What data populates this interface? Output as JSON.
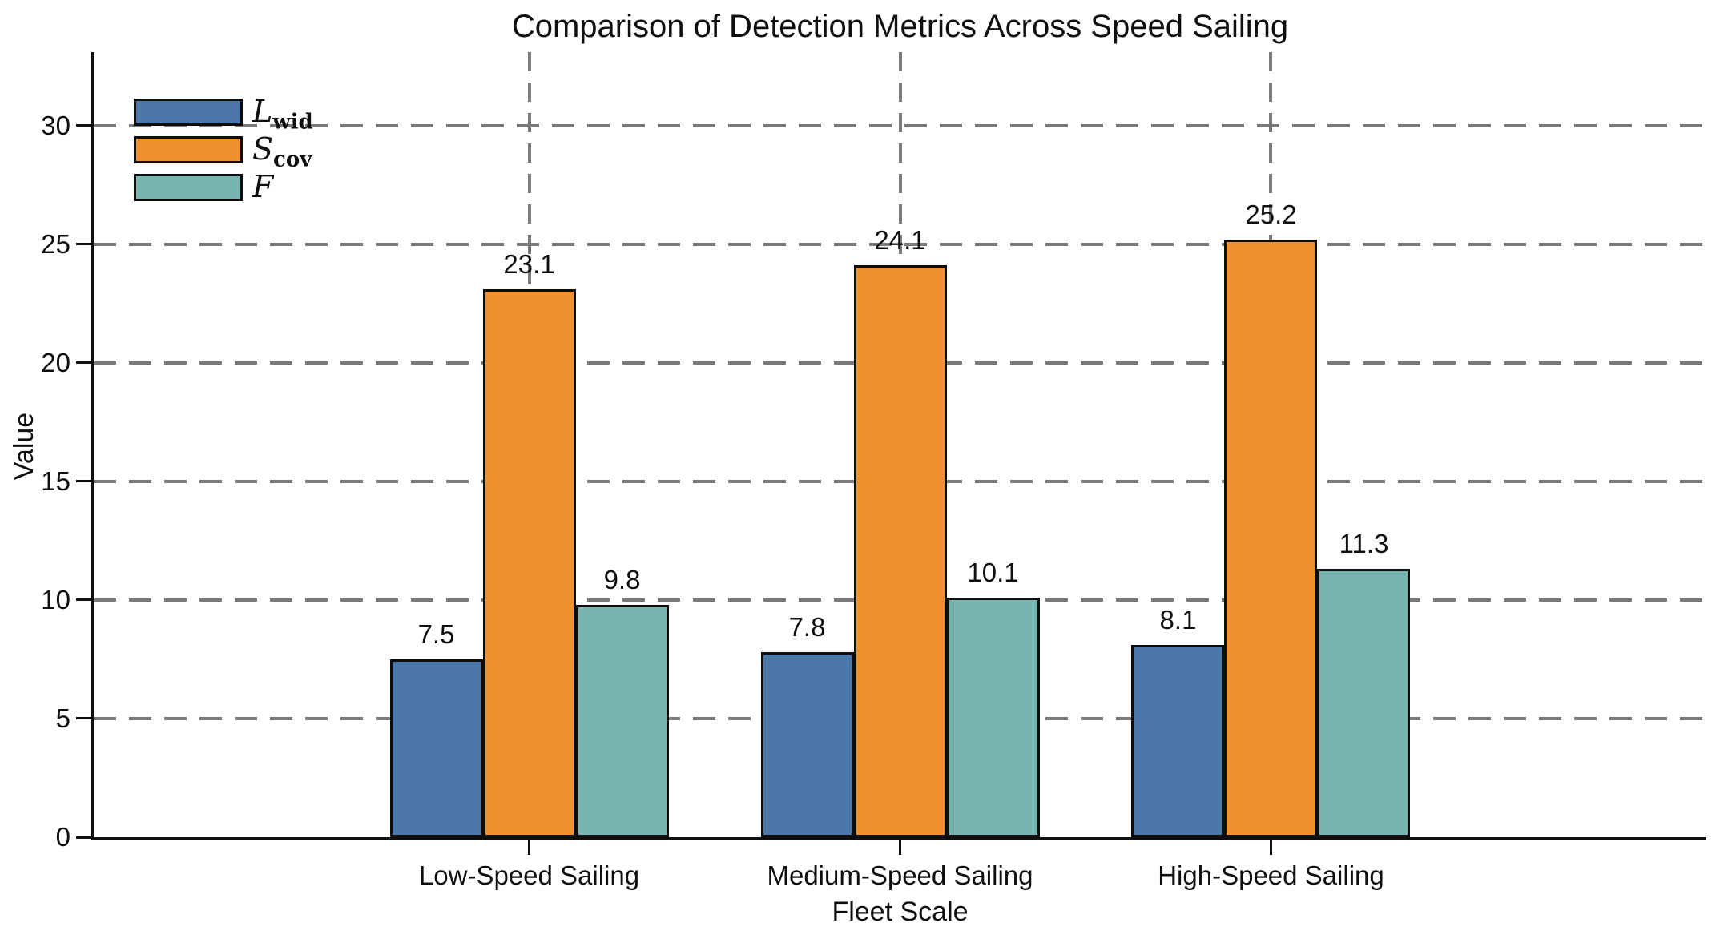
{
  "chart_data": {
    "type": "bar",
    "title": "Comparison of Detection Metrics Across Speed Sailing",
    "xlabel": "Fleet Scale",
    "ylabel": "Value",
    "categories": [
      "Low-Speed Sailing",
      "Medium-Speed Sailing",
      "High-Speed Sailing"
    ],
    "series": [
      {
        "name": "L_wid",
        "legend_main": "L",
        "legend_sub": "wid",
        "color": "#4B78A8",
        "values": [
          7.5,
          7.8,
          8.1
        ]
      },
      {
        "name": "S_cov",
        "legend_main": "S",
        "legend_sub": "cov",
        "color": "#F0902E",
        "values": [
          23.1,
          24.1,
          25.2
        ]
      },
      {
        "name": "F",
        "legend_main": "F",
        "legend_sub": "",
        "color": "#78B5B0",
        "values": [
          9.8,
          10.1,
          11.3
        ]
      }
    ],
    "yticks": [
      0,
      5,
      10,
      15,
      20,
      25,
      30
    ],
    "ylim": [
      0,
      33.1
    ],
    "grid": {
      "style": "dashed",
      "color": "#7a7a7a",
      "horizontal_at_yticks": true,
      "vertical_at_categories": true
    },
    "legend": {
      "position": "upper left",
      "frame": false
    },
    "bar_edge_color": "#0d0d0d",
    "axis_color": "#0f0f0f",
    "value_label_format": "one-decimal"
  }
}
